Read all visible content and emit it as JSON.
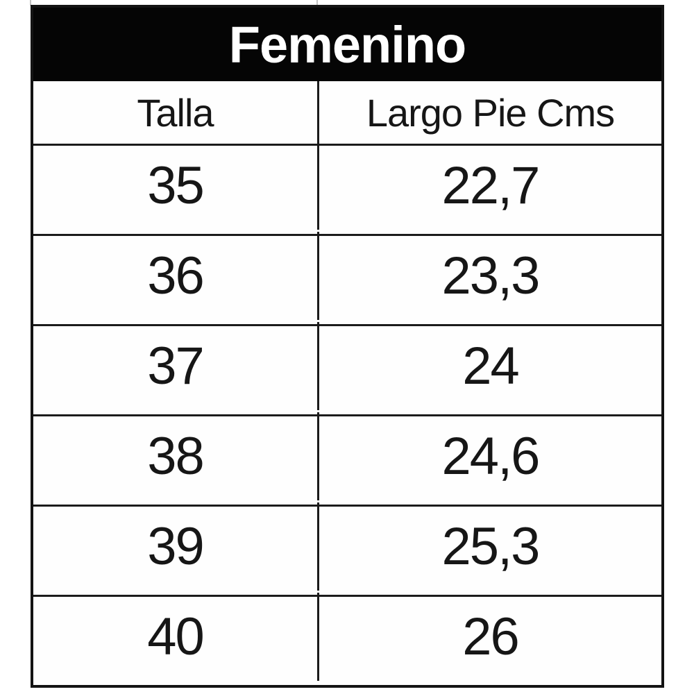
{
  "chart_data": {
    "type": "table",
    "title": "Femenino",
    "columns": [
      "Talla",
      "Largo Pie Cms"
    ],
    "rows": [
      [
        "35",
        "22,7"
      ],
      [
        "36",
        "23,3"
      ],
      [
        "37",
        "24"
      ],
      [
        "38",
        "24,6"
      ],
      [
        "39",
        "25,3"
      ],
      [
        "40",
        "26"
      ]
    ],
    "notes": "Women's shoe size conversion table: size (Talla) vs foot length in centimeters (Largo Pie Cms)"
  },
  "colors": {
    "title_bg": "#050505",
    "title_text": "#ffffff",
    "border": "#1b1b1b",
    "cell_text": "#161616",
    "cell_bg": "#fefefe"
  }
}
